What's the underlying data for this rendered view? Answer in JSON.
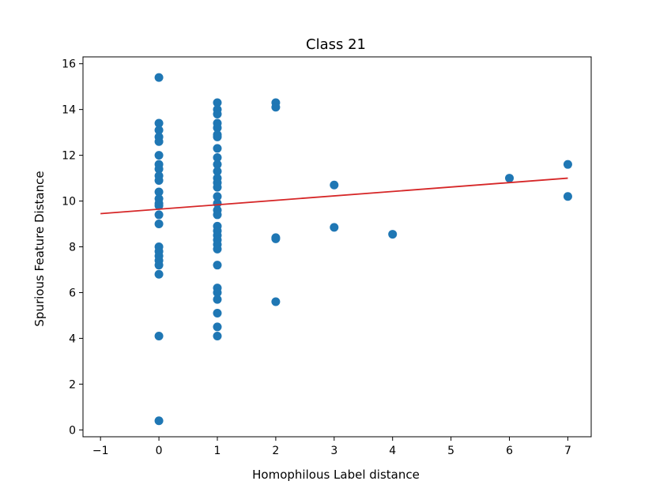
{
  "chart_data": {
    "type": "scatter",
    "title": "Class 21",
    "xlabel": "Homophilous Label distance",
    "ylabel": "Spurious Feature Distance",
    "xlim": [
      -1.3,
      7.4
    ],
    "ylim": [
      -0.3,
      16.3
    ],
    "xticks": [
      -1,
      0,
      1,
      2,
      3,
      4,
      5,
      6,
      7
    ],
    "xtick_labels": [
      "−1",
      "0",
      "1",
      "2",
      "3",
      "4",
      "5",
      "6",
      "7"
    ],
    "yticks": [
      0,
      2,
      4,
      6,
      8,
      10,
      12,
      14,
      16
    ],
    "ytick_labels": [
      "0",
      "2",
      "4",
      "6",
      "8",
      "10",
      "12",
      "14",
      "16"
    ],
    "grid": false,
    "marker_color": "#1f77b4",
    "line_color": "#d62728",
    "points": [
      {
        "x": 0,
        "y": 15.4
      },
      {
        "x": 0,
        "y": 13.4
      },
      {
        "x": 0,
        "y": 13.1
      },
      {
        "x": 0,
        "y": 12.8
      },
      {
        "x": 0,
        "y": 12.6
      },
      {
        "x": 0,
        "y": 12.0
      },
      {
        "x": 0,
        "y": 11.6
      },
      {
        "x": 0,
        "y": 11.4
      },
      {
        "x": 0,
        "y": 11.1
      },
      {
        "x": 0,
        "y": 10.9
      },
      {
        "x": 0,
        "y": 10.4
      },
      {
        "x": 0,
        "y": 10.1
      },
      {
        "x": 0,
        "y": 9.9
      },
      {
        "x": 0,
        "y": 9.8
      },
      {
        "x": 0,
        "y": 9.4
      },
      {
        "x": 0,
        "y": 9.0
      },
      {
        "x": 0,
        "y": 8.0
      },
      {
        "x": 0,
        "y": 7.8
      },
      {
        "x": 0,
        "y": 7.6
      },
      {
        "x": 0,
        "y": 7.4
      },
      {
        "x": 0,
        "y": 7.2
      },
      {
        "x": 0,
        "y": 6.8
      },
      {
        "x": 0,
        "y": 4.1
      },
      {
        "x": 0,
        "y": 0.4
      },
      {
        "x": 1,
        "y": 14.3
      },
      {
        "x": 1,
        "y": 14.0
      },
      {
        "x": 1,
        "y": 13.8
      },
      {
        "x": 1,
        "y": 13.4
      },
      {
        "x": 1,
        "y": 13.2
      },
      {
        "x": 1,
        "y": 12.9
      },
      {
        "x": 1,
        "y": 12.8
      },
      {
        "x": 1,
        "y": 12.3
      },
      {
        "x": 1,
        "y": 11.9
      },
      {
        "x": 1,
        "y": 11.6
      },
      {
        "x": 1,
        "y": 11.3
      },
      {
        "x": 1,
        "y": 11.0
      },
      {
        "x": 1,
        "y": 10.8
      },
      {
        "x": 1,
        "y": 10.6
      },
      {
        "x": 1,
        "y": 10.2
      },
      {
        "x": 1,
        "y": 9.9
      },
      {
        "x": 1,
        "y": 9.6
      },
      {
        "x": 1,
        "y": 9.4
      },
      {
        "x": 1,
        "y": 8.9
      },
      {
        "x": 1,
        "y": 8.7
      },
      {
        "x": 1,
        "y": 8.5
      },
      {
        "x": 1,
        "y": 8.3
      },
      {
        "x": 1,
        "y": 8.1
      },
      {
        "x": 1,
        "y": 7.9
      },
      {
        "x": 1,
        "y": 7.2
      },
      {
        "x": 1,
        "y": 6.2
      },
      {
        "x": 1,
        "y": 6.0
      },
      {
        "x": 1,
        "y": 5.7
      },
      {
        "x": 1,
        "y": 5.1
      },
      {
        "x": 1,
        "y": 4.5
      },
      {
        "x": 1,
        "y": 4.1
      },
      {
        "x": 2,
        "y": 14.3
      },
      {
        "x": 2,
        "y": 14.1
      },
      {
        "x": 2,
        "y": 8.4
      },
      {
        "x": 2,
        "y": 8.35
      },
      {
        "x": 2,
        "y": 5.6
      },
      {
        "x": 3,
        "y": 10.7
      },
      {
        "x": 3,
        "y": 8.85
      },
      {
        "x": 4,
        "y": 8.55
      },
      {
        "x": 6,
        "y": 11.0
      },
      {
        "x": 7,
        "y": 11.6
      },
      {
        "x": 7,
        "y": 10.2
      }
    ],
    "fit_line": {
      "x": [
        -1,
        7
      ],
      "y": [
        9.45,
        11.0
      ]
    }
  }
}
